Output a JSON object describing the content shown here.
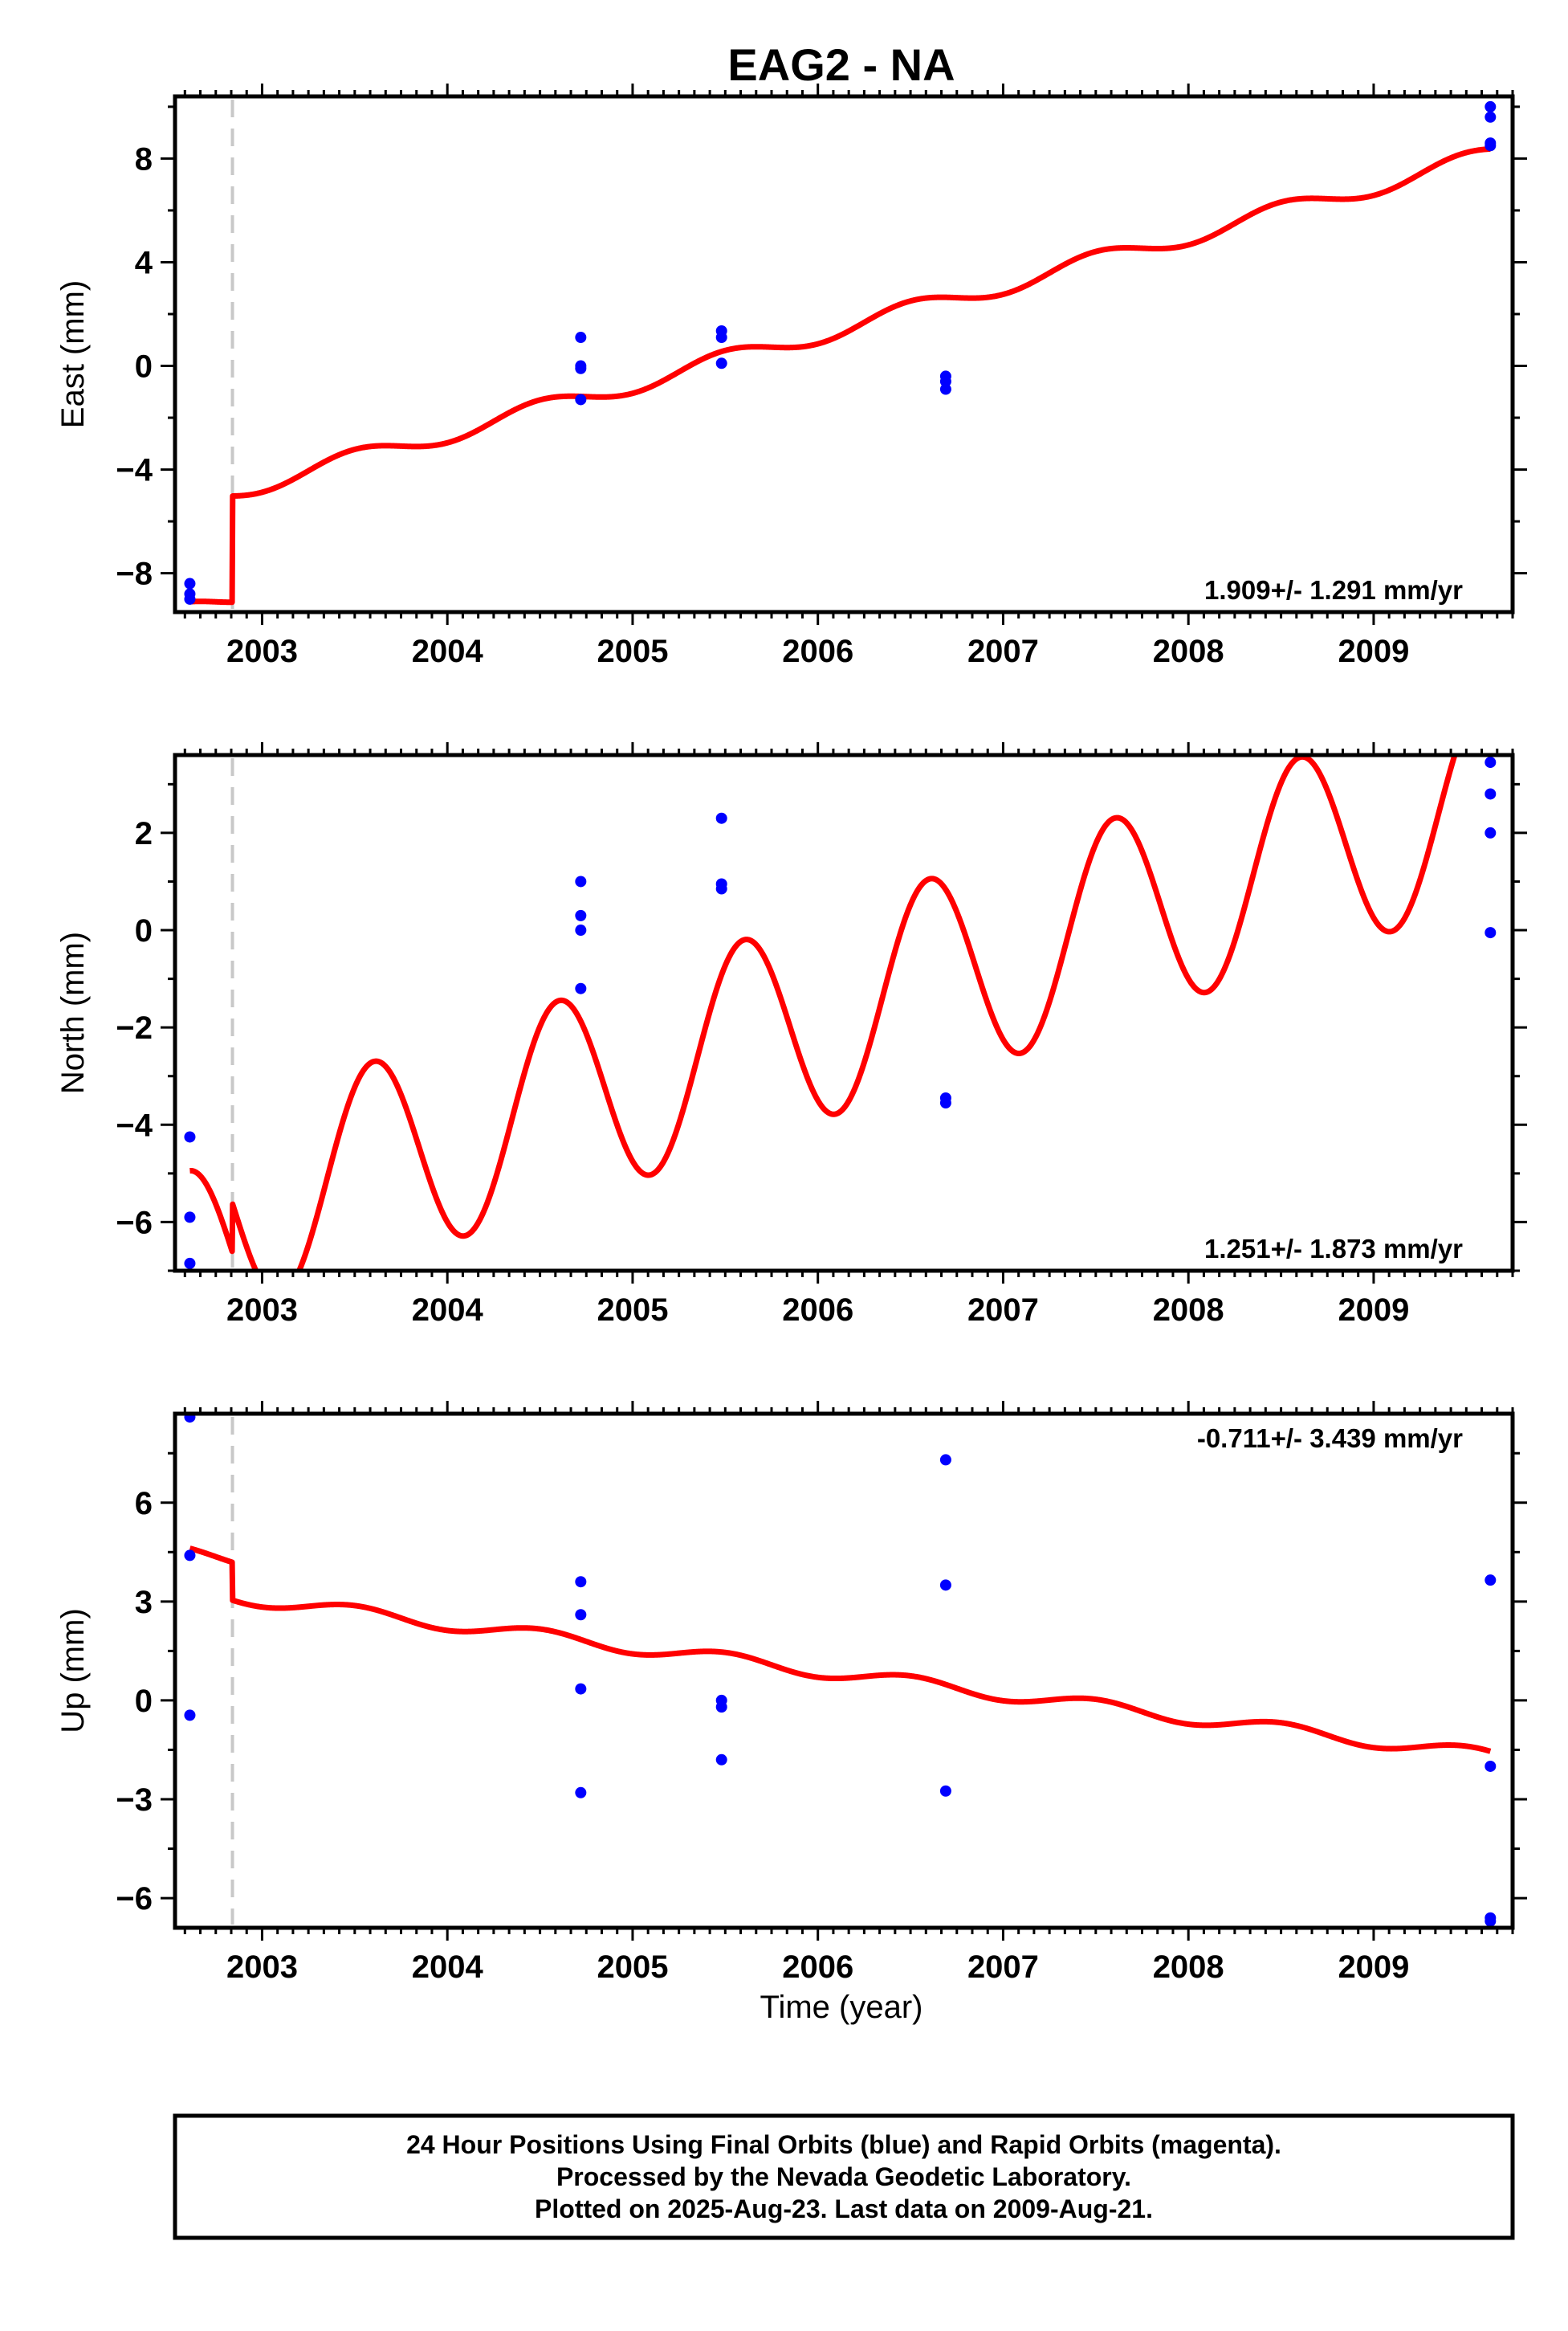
{
  "title": "EAG2 - NA",
  "xlabel": "Time (year)",
  "footer": {
    "line1": "24 Hour Positions Using Final Orbits (blue) and Rapid Orbits (magenta).",
    "line2": "Processed by the Nevada Geodetic Laboratory.",
    "line3": "Plotted on 2025-Aug-23. Last data on 2009-Aug-21."
  },
  "colors": {
    "final_orbits": "#0000ff",
    "model": "#ff0000",
    "equipment_change": "#c8c8c8"
  },
  "chart_data": [
    {
      "type": "scatter",
      "component": "east",
      "ylabel": "East (mm)",
      "rate_label": "1.909+/- 1.291 mm/yr",
      "xlim": [
        2002.53,
        2009.75
      ],
      "ylim": [
        -9.5,
        10.4
      ],
      "yticks": [
        -8,
        -4,
        0,
        4,
        8
      ],
      "yticklabels": [
        "−8",
        "−4",
        "0",
        "4",
        "8"
      ],
      "xticks": [
        2003,
        2004,
        2005,
        2006,
        2007,
        2008,
        2009
      ],
      "xticklabels": [
        "2003",
        "2004",
        "2005",
        "2006",
        "2007",
        "2008",
        "2009"
      ],
      "equipment_change_x": 2002.84,
      "model": {
        "rate": 1.909,
        "offset_at_2006": 1.2,
        "step_before_break": -4.1,
        "annual_amp": 0.35,
        "annual_phase": 0.25,
        "semiannual_amp": 0.0
      },
      "points": [
        {
          "x": 2002.61,
          "y": -8.4
        },
        {
          "x": 2002.61,
          "y": -8.8
        },
        {
          "x": 2002.61,
          "y": -9.0
        },
        {
          "x": 2004.72,
          "y": 1.1
        },
        {
          "x": 2004.72,
          "y": 0.0
        },
        {
          "x": 2004.72,
          "y": -0.1
        },
        {
          "x": 2004.72,
          "y": -1.3
        },
        {
          "x": 2005.48,
          "y": 1.35
        },
        {
          "x": 2005.48,
          "y": 1.1
        },
        {
          "x": 2005.48,
          "y": 0.1
        },
        {
          "x": 2006.69,
          "y": -0.4
        },
        {
          "x": 2006.69,
          "y": -0.6
        },
        {
          "x": 2006.69,
          "y": -0.9
        },
        {
          "x": 2009.63,
          "y": 10.0
        },
        {
          "x": 2009.63,
          "y": 9.6
        },
        {
          "x": 2009.63,
          "y": 8.6
        },
        {
          "x": 2009.63,
          "y": 8.5
        }
      ]
    },
    {
      "type": "scatter",
      "component": "north",
      "ylabel": "North (mm)",
      "rate_label": "1.251+/- 1.873 mm/yr",
      "xlim": [
        2002.53,
        2009.75
      ],
      "ylim": [
        -7.0,
        3.6
      ],
      "yticks": [
        -6,
        -4,
        -2,
        0,
        2
      ],
      "yticklabels": [
        "−6",
        "−4",
        "−2",
        "0",
        "2"
      ],
      "xticks": [
        2003,
        2004,
        2005,
        2006,
        2007,
        2008,
        2009
      ],
      "xticklabels": [
        "2003",
        "2004",
        "2005",
        "2006",
        "2007",
        "2008",
        "2009"
      ],
      "equipment_change_x": 2002.84,
      "model": {
        "rate": 1.251,
        "offset_at_2006": -1.8,
        "step_before_break": -1.0,
        "annual_amp": 2.1,
        "annual_phase": 0.35,
        "semiannual_amp": 0.0
      },
      "points": [
        {
          "x": 2002.61,
          "y": -4.25
        },
        {
          "x": 2002.61,
          "y": -5.9
        },
        {
          "x": 2002.61,
          "y": -6.85
        },
        {
          "x": 2004.72,
          "y": 1.0
        },
        {
          "x": 2004.72,
          "y": 0.3
        },
        {
          "x": 2004.72,
          "y": 0.0
        },
        {
          "x": 2004.72,
          "y": -1.2
        },
        {
          "x": 2005.48,
          "y": 2.3
        },
        {
          "x": 2005.48,
          "y": 0.95
        },
        {
          "x": 2005.48,
          "y": 0.85
        },
        {
          "x": 2006.69,
          "y": -3.45
        },
        {
          "x": 2006.69,
          "y": -3.55
        },
        {
          "x": 2009.63,
          "y": 3.45
        },
        {
          "x": 2009.63,
          "y": 2.8
        },
        {
          "x": 2009.63,
          "y": 2.0
        },
        {
          "x": 2009.63,
          "y": -0.05
        }
      ]
    },
    {
      "type": "scatter",
      "component": "up",
      "ylabel": "Up (mm)",
      "rate_label": "-0.711+/- 3.439 mm/yr",
      "xlim": [
        2002.53,
        2009.75
      ],
      "ylim": [
        -6.9,
        8.7
      ],
      "yticks": [
        -6,
        -3,
        0,
        3,
        6
      ],
      "yticklabels": [
        "−6",
        "−3",
        "0",
        "3",
        "6"
      ],
      "xticks": [
        2003,
        2004,
        2005,
        2006,
        2007,
        2008,
        2009
      ],
      "xticklabels": [
        "2003",
        "2004",
        "2005",
        "2006",
        "2007",
        "2008",
        "2009"
      ],
      "equipment_change_x": 2002.84,
      "model": {
        "rate": -0.711,
        "offset_at_2006": 0.9,
        "step_before_break": 1.15,
        "annual_amp": 0.2,
        "annual_phase": 0.25,
        "semiannual_amp": 0.0
      },
      "points": [
        {
          "x": 2002.61,
          "y": 8.6
        },
        {
          "x": 2002.61,
          "y": 4.4
        },
        {
          "x": 2002.61,
          "y": -0.45
        },
        {
          "x": 2004.72,
          "y": 3.6
        },
        {
          "x": 2004.72,
          "y": 2.6
        },
        {
          "x": 2004.72,
          "y": 0.35
        },
        {
          "x": 2004.72,
          "y": -2.8
        },
        {
          "x": 2005.48,
          "y": 0.0
        },
        {
          "x": 2005.48,
          "y": -0.2
        },
        {
          "x": 2005.48,
          "y": -1.8
        },
        {
          "x": 2006.69,
          "y": 7.3
        },
        {
          "x": 2006.69,
          "y": 3.5
        },
        {
          "x": 2006.69,
          "y": -2.75
        },
        {
          "x": 2009.63,
          "y": 3.65
        },
        {
          "x": 2009.63,
          "y": -2.0
        },
        {
          "x": 2009.63,
          "y": -6.6
        },
        {
          "x": 2009.63,
          "y": -6.7
        }
      ]
    }
  ]
}
